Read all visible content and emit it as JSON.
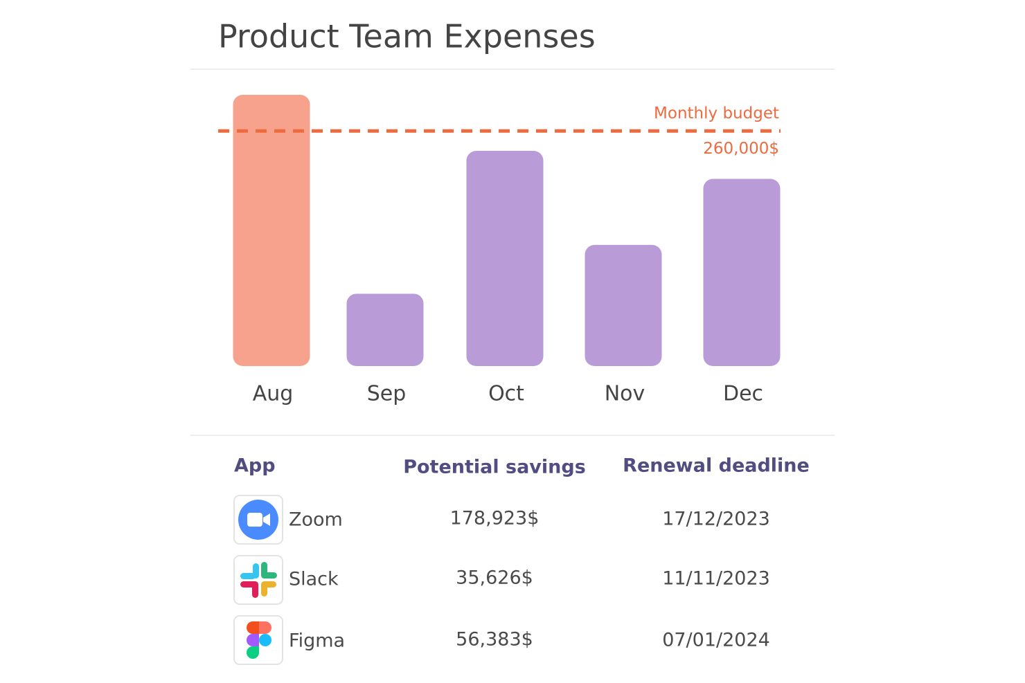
{
  "title": "Product Team Expenses",
  "chart_data": {
    "type": "bar",
    "categories": [
      "Aug",
      "Sep",
      "Oct",
      "Nov",
      "Dec"
    ],
    "values": [
      300000,
      80000,
      238000,
      134000,
      207000
    ],
    "colors": [
      "#f6a28c",
      "#b99cd7",
      "#b99cd7",
      "#b99cd7",
      "#b99cd7"
    ],
    "ylim": [
      0,
      300000
    ],
    "budget": {
      "label": "Monthly budget",
      "value": 260000,
      "value_label": "260,000$",
      "color": "#ee6a3f"
    }
  },
  "table": {
    "headers": [
      "App",
      "Potential savings",
      "Renewal deadline"
    ],
    "rows": [
      [
        "Zoom",
        "178,923$",
        "17/12/2023"
      ],
      [
        "Slack",
        "35,626$",
        "11/11/2023"
      ],
      [
        "Figma",
        "56,383$",
        "07/01/2024"
      ]
    ]
  }
}
